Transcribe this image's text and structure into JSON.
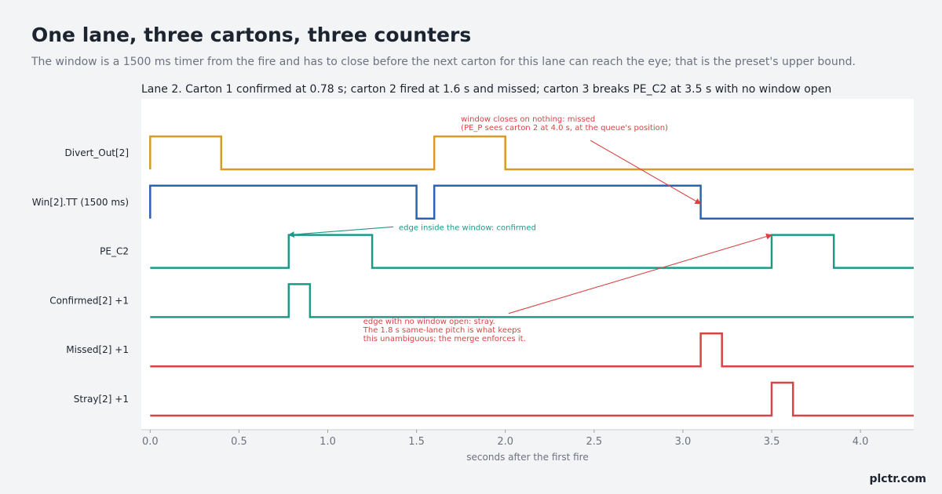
{
  "page": {
    "title": "One lane, three cartons, three counters",
    "subtitle": "The window is a 1500 ms timer from the fire and has to close before the next carton for this lane can reach the eye; that is the preset's upper bound.",
    "brand": "plctr.com"
  },
  "colors": {
    "background": "#f3f4f6",
    "plot_background": "#ffffff",
    "orange": "#d89a2b",
    "blue": "#2b63b0",
    "teal": "#1f9987",
    "red": "#d64545",
    "text": "#1c2430",
    "muted": "#6b7280"
  },
  "chart_data": {
    "type": "line",
    "title": "Lane 2. Carton 1 confirmed at 0.78 s; carton 2 fired at 1.6 s and missed; carton 3 breaks PE_C2 at 3.5 s with no window open",
    "xlabel": "seconds after the first fire",
    "ylabel": "",
    "xlim": [
      -0.05,
      4.3
    ],
    "xticks": [
      0.0,
      0.5,
      1.0,
      1.5,
      2.0,
      2.5,
      3.0,
      3.5,
      4.0
    ],
    "xtick_labels": [
      "0.0",
      "0.5",
      "1.0",
      "1.5",
      "2.0",
      "2.5",
      "3.0",
      "3.5",
      "4.0"
    ],
    "grid": false,
    "legend": "none",
    "series": [
      {
        "name": "Divert_Out[2]",
        "color": "orange",
        "start": 1,
        "steps": [
          [
            0.4,
            0
          ],
          [
            1.6,
            1
          ],
          [
            2.0,
            0
          ]
        ]
      },
      {
        "name": "Win[2].TT (1500 ms)",
        "color": "blue",
        "start": 1,
        "steps": [
          [
            1.5,
            0
          ],
          [
            1.6,
            1
          ],
          [
            3.1,
            0
          ]
        ]
      },
      {
        "name": "PE_C2",
        "color": "teal",
        "start": 0,
        "steps": [
          [
            0.78,
            1
          ],
          [
            1.25,
            0
          ],
          [
            3.5,
            1
          ],
          [
            3.85,
            0
          ]
        ]
      },
      {
        "name": "Confirmed[2] +1",
        "color": "teal",
        "start": 0,
        "steps": [
          [
            0.78,
            1
          ],
          [
            0.9,
            0
          ]
        ]
      },
      {
        "name": "Missed[2] +1",
        "color": "red",
        "start": 0,
        "steps": [
          [
            3.1,
            1
          ],
          [
            3.22,
            0
          ]
        ]
      },
      {
        "name": "Stray[2] +1",
        "color": "red",
        "start": 0,
        "steps": [
          [
            3.5,
            1
          ],
          [
            3.62,
            0
          ]
        ]
      }
    ],
    "annotations": [
      {
        "lines": [
          "window closes on nothing: missed",
          "(PE_P sees carton 2 at 4.0 s, at the queue's position)"
        ],
        "color": "red",
        "text_x": 1.75,
        "text_row": 0,
        "text_level": 1.45,
        "arrow_x": 3.1,
        "arrow_row": 1,
        "arrow_level": 0.45
      },
      {
        "lines": [
          "edge inside the window: confirmed"
        ],
        "color": "teal",
        "text_x": 1.4,
        "text_row": 2,
        "text_level": 1.15,
        "arrow_x": 0.78,
        "arrow_row": 2,
        "arrow_level": 1.0
      },
      {
        "lines": [
          "edge with no window open: stray.",
          "The 1.8 s same-lane pitch is what keeps",
          "this unambiguous; the merge enforces it."
        ],
        "color": "red",
        "text_x": 1.2,
        "text_row": 3,
        "text_level": -0.2,
        "arrow_x": 3.5,
        "arrow_row": 2,
        "arrow_level": 1.0
      }
    ]
  }
}
